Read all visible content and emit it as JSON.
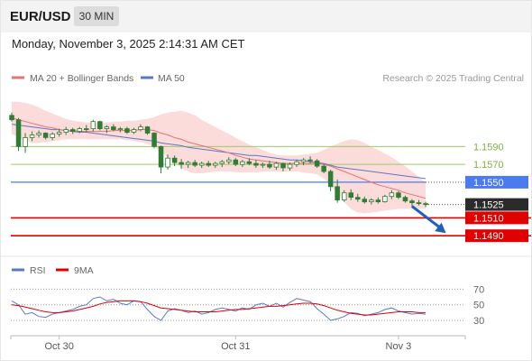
{
  "header": {
    "symbol": "EUR/USD",
    "timeframe": "30 MIN",
    "timestamp": "Monday, November 3, 2025 2:14:31 AM CET"
  },
  "legend": {
    "ma20": "MA 20 + Bollinger Bands",
    "ma50": "MA 50",
    "credit": "Research © 2025 Trading Central",
    "rsi": "RSI",
    "rsi_ma": "9MA"
  },
  "colors": {
    "candle": "#2e7d32",
    "ma20": "#e57373",
    "bollinger_fill": "#fbd5d5",
    "ma50": "#5b77c9",
    "support": "#e00000",
    "resistance": "#9ccc65",
    "pivot": "#4a7cf0",
    "current": "#2b2b2b",
    "arrow": "#1f5fbf"
  },
  "chart_data": [
    {
      "type": "candlestick",
      "ylim": [
        1.1475,
        1.1645
      ],
      "x_ticks": [
        {
          "label": "Oct 30",
          "index": 7
        },
        {
          "label": "Oct 31",
          "index": 33
        },
        {
          "label": "Nov 3",
          "index": 57
        }
      ],
      "levels": [
        {
          "label": "1.1590",
          "value": 1.159,
          "kind": "resistance"
        },
        {
          "label": "1.1570",
          "value": 1.157,
          "kind": "resistance"
        },
        {
          "label": "1.1550",
          "value": 1.155,
          "kind": "pivot"
        },
        {
          "label": "1.1525",
          "value": 1.1525,
          "kind": "current"
        },
        {
          "label": "1.1510",
          "value": 1.151,
          "kind": "support"
        },
        {
          "label": "1.1490",
          "value": 1.149,
          "kind": "support"
        }
      ],
      "arrow": {
        "from": [
          59,
          1.1523
        ],
        "to": [
          64,
          1.1493
        ]
      },
      "ohlc": [
        [
          1.1625,
          1.1628,
          1.1618,
          1.162
        ],
        [
          1.162,
          1.1622,
          1.1585,
          1.159
        ],
        [
          1.159,
          1.1605,
          1.1583,
          1.16
        ],
        [
          1.16,
          1.1607,
          1.1596,
          1.1603
        ],
        [
          1.1603,
          1.1608,
          1.16,
          1.1605
        ],
        [
          1.1605,
          1.1606,
          1.1598,
          1.16
        ],
        [
          1.16,
          1.1606,
          1.1597,
          1.1604
        ],
        [
          1.1604,
          1.161,
          1.1601,
          1.1606
        ],
        [
          1.1606,
          1.1612,
          1.1603,
          1.1609
        ],
        [
          1.1609,
          1.1611,
          1.1604,
          1.1607
        ],
        [
          1.1607,
          1.1612,
          1.1605,
          1.161
        ],
        [
          1.161,
          1.1614,
          1.1606,
          1.1609
        ],
        [
          1.161,
          1.162,
          1.1607,
          1.1618
        ],
        [
          1.1618,
          1.1619,
          1.1608,
          1.161
        ],
        [
          1.161,
          1.1614,
          1.1605,
          1.1612
        ],
        [
          1.1612,
          1.1615,
          1.1607,
          1.1609
        ],
        [
          1.1609,
          1.1612,
          1.1606,
          1.161
        ],
        [
          1.161,
          1.1612,
          1.1604,
          1.1606
        ],
        [
          1.1606,
          1.1611,
          1.1604,
          1.1609
        ],
        [
          1.1609,
          1.1615,
          1.1607,
          1.1612
        ],
        [
          1.1612,
          1.1613,
          1.1603,
          1.1605
        ],
        [
          1.1605,
          1.1606,
          1.1588,
          1.159
        ],
        [
          1.159,
          1.1591,
          1.156,
          1.1567
        ],
        [
          1.1567,
          1.1581,
          1.1564,
          1.1577
        ],
        [
          1.1577,
          1.158,
          1.1568,
          1.1572
        ],
        [
          1.1572,
          1.1576,
          1.1565,
          1.157
        ],
        [
          1.157,
          1.1574,
          1.1566,
          1.1572
        ],
        [
          1.1572,
          1.1575,
          1.1567,
          1.1569
        ],
        [
          1.1569,
          1.1573,
          1.1566,
          1.1571
        ],
        [
          1.1571,
          1.1574,
          1.1567,
          1.1569
        ],
        [
          1.1569,
          1.1573,
          1.1566,
          1.1571
        ],
        [
          1.1571,
          1.1575,
          1.1567,
          1.1573
        ],
        [
          1.1573,
          1.1578,
          1.157,
          1.1575
        ],
        [
          1.1575,
          1.1577,
          1.1568,
          1.157
        ],
        [
          1.157,
          1.1575,
          1.1567,
          1.1573
        ],
        [
          1.1573,
          1.1577,
          1.1569,
          1.1571
        ],
        [
          1.1571,
          1.1575,
          1.1566,
          1.1569
        ],
        [
          1.1569,
          1.1572,
          1.1566,
          1.157
        ],
        [
          1.157,
          1.1574,
          1.1565,
          1.1567
        ],
        [
          1.1567,
          1.1573,
          1.1564,
          1.1571
        ],
        [
          1.1571,
          1.1572,
          1.1562,
          1.1566
        ],
        [
          1.1566,
          1.1572,
          1.1563,
          1.157
        ],
        [
          1.157,
          1.1575,
          1.1567,
          1.1573
        ],
        [
          1.1573,
          1.1577,
          1.1569,
          1.1575
        ],
        [
          1.1575,
          1.1579,
          1.1571,
          1.1574
        ],
        [
          1.1574,
          1.1576,
          1.1566,
          1.1568
        ],
        [
          1.1568,
          1.157,
          1.156,
          1.1562
        ],
        [
          1.1562,
          1.1564,
          1.154,
          1.1545
        ],
        [
          1.1545,
          1.1553,
          1.1527,
          1.153
        ],
        [
          1.153,
          1.1541,
          1.1528,
          1.1538
        ],
        [
          1.1538,
          1.1542,
          1.153,
          1.1533
        ],
        [
          1.1533,
          1.1537,
          1.1528,
          1.1531
        ],
        [
          1.1531,
          1.1534,
          1.1526,
          1.1528
        ],
        [
          1.1528,
          1.1532,
          1.1525,
          1.153
        ],
        [
          1.153,
          1.1533,
          1.1526,
          1.1528
        ],
        [
          1.1528,
          1.1536,
          1.1527,
          1.1534
        ],
        [
          1.1534,
          1.1541,
          1.1531,
          1.1538
        ],
        [
          1.1538,
          1.154,
          1.1531,
          1.1533
        ],
        [
          1.1533,
          1.1535,
          1.1527,
          1.1529
        ],
        [
          1.1529,
          1.1531,
          1.1523,
          1.1527
        ],
        [
          1.1527,
          1.153,
          1.1524,
          1.1526
        ],
        [
          1.1526,
          1.1528,
          1.1522,
          1.1525
        ]
      ],
      "ma20": [
        1.1622,
        1.162,
        1.1618,
        1.1616,
        1.1614,
        1.1612,
        1.1611,
        1.1609,
        1.1608,
        1.1608,
        1.1607,
        1.1607,
        1.1607,
        1.1607,
        1.1607,
        1.1608,
        1.1608,
        1.1608,
        1.1608,
        1.1609,
        1.1609,
        1.1608,
        1.1605,
        1.1603,
        1.16,
        1.1598,
        1.1595,
        1.1593,
        1.1591,
        1.1589,
        1.1587,
        1.1585,
        1.1583,
        1.158,
        1.1578,
        1.1576,
        1.1575,
        1.1574,
        1.1573,
        1.1572,
        1.1571,
        1.1571,
        1.1571,
        1.1571,
        1.1571,
        1.1571,
        1.157,
        1.1568,
        1.1565,
        1.1562,
        1.1559,
        1.1556,
        1.1553,
        1.155,
        1.1547,
        1.1545,
        1.1543,
        1.1541,
        1.1538,
        1.1536,
        1.1534,
        1.1532
      ],
      "bb_upper": [
        1.164,
        1.164,
        1.1639,
        1.1637,
        1.1634,
        1.163,
        1.1627,
        1.1624,
        1.1621,
        1.1619,
        1.1618,
        1.1617,
        1.1617,
        1.1617,
        1.1617,
        1.1618,
        1.1618,
        1.1619,
        1.1619,
        1.162,
        1.1621,
        1.1623,
        1.1626,
        1.1628,
        1.1629,
        1.163,
        1.1628,
        1.1625,
        1.162,
        1.1616,
        1.1612,
        1.1608,
        1.1604,
        1.16,
        1.1596,
        1.1592,
        1.1589,
        1.1586,
        1.1583,
        1.1581,
        1.158,
        1.158,
        1.158,
        1.1581,
        1.1582,
        1.1583,
        1.1586,
        1.159,
        1.1593,
        1.1596,
        1.1598,
        1.1597,
        1.1594,
        1.159,
        1.1586,
        1.1582,
        1.1578,
        1.1573,
        1.1568,
        1.1562,
        1.1556,
        1.155
      ],
      "bb_lower": [
        1.1604,
        1.16,
        1.1597,
        1.1594,
        1.1594,
        1.1595,
        1.1596,
        1.1597,
        1.1598,
        1.1598,
        1.1598,
        1.1598,
        1.1598,
        1.1598,
        1.1598,
        1.1598,
        1.1598,
        1.1597,
        1.1596,
        1.1595,
        1.1593,
        1.159,
        1.1584,
        1.1578,
        1.1572,
        1.1566,
        1.1562,
        1.156,
        1.156,
        1.1561,
        1.1562,
        1.1562,
        1.1562,
        1.1561,
        1.1561,
        1.1561,
        1.1561,
        1.1562,
        1.1562,
        1.1562,
        1.1562,
        1.1562,
        1.1562,
        1.1561,
        1.156,
        1.1559,
        1.1554,
        1.1546,
        1.1537,
        1.1528,
        1.152,
        1.1516,
        1.1515,
        1.1516,
        1.1517,
        1.1518,
        1.1519,
        1.152,
        1.152,
        1.152,
        1.152,
        1.152
      ],
      "ma50": [
        1.1615,
        1.1614,
        1.1613,
        1.1612,
        1.1611,
        1.161,
        1.1609,
        1.1609,
        1.1608,
        1.1607,
        1.1606,
        1.1606,
        1.1605,
        1.1604,
        1.1603,
        1.1602,
        1.1601,
        1.16,
        1.1599,
        1.1598,
        1.1597,
        1.1596,
        1.1594,
        1.1593,
        1.1592,
        1.1591,
        1.1589,
        1.1588,
        1.1587,
        1.1586,
        1.1585,
        1.1584,
        1.1583,
        1.1582,
        1.1581,
        1.158,
        1.158,
        1.1579,
        1.1578,
        1.1577,
        1.1576,
        1.1575,
        1.1575,
        1.1574,
        1.1573,
        1.1572,
        1.1571,
        1.1569,
        1.1567,
        1.1566,
        1.1565,
        1.1564,
        1.1563,
        1.1562,
        1.1561,
        1.156,
        1.1559,
        1.1558,
        1.1557,
        1.1556,
        1.1555,
        1.1554
      ]
    },
    {
      "type": "line",
      "ylim": [
        15,
        82
      ],
      "y_ticks": [
        70,
        50,
        30
      ],
      "series": [
        {
          "name": "RSI",
          "values": [
            55,
            50,
            38,
            40,
            35,
            34,
            38,
            40,
            42,
            44,
            48,
            50,
            58,
            60,
            55,
            57,
            52,
            50,
            55,
            54,
            44,
            35,
            30,
            42,
            45,
            43,
            40,
            42,
            38,
            40,
            44,
            46,
            44,
            42,
            46,
            44,
            50,
            52,
            48,
            52,
            47,
            53,
            58,
            56,
            54,
            45,
            38,
            30,
            32,
            35,
            40,
            39,
            36,
            38,
            40,
            44,
            46,
            42,
            40,
            38,
            39,
            38
          ]
        },
        {
          "name": "9MA",
          "values": [
            50,
            49,
            47,
            45,
            43,
            41,
            40,
            40,
            41,
            42,
            44,
            46,
            48,
            51,
            53,
            54,
            55,
            55,
            55,
            54,
            52,
            49,
            46,
            45,
            44,
            43,
            42,
            41,
            41,
            41,
            41,
            42,
            43,
            44,
            44,
            45,
            46,
            47,
            48,
            48,
            49,
            50,
            51,
            52,
            52,
            51,
            49,
            46,
            43,
            41,
            39,
            38,
            37,
            37,
            38,
            39,
            40,
            41,
            41,
            41,
            40,
            40
          ]
        }
      ]
    }
  ]
}
